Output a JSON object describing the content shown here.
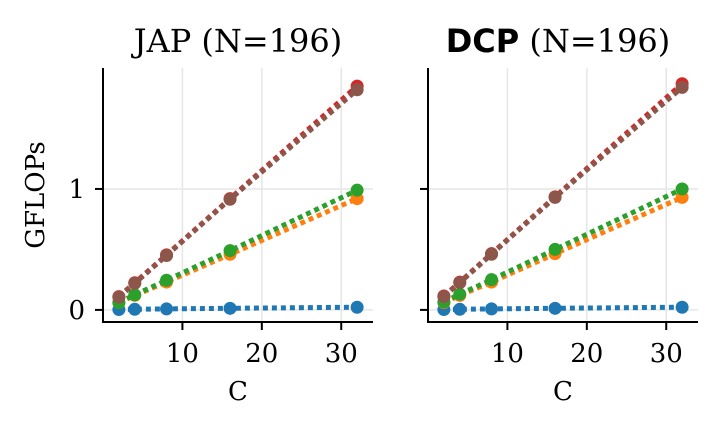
{
  "chart_data": [
    {
      "type": "line",
      "title": "JAP (N=196)",
      "title_bold_part": "",
      "title_rest": "JAP (N=196)",
      "xlabel": "C",
      "ylabel": "GFLOPs",
      "xlim": [
        0,
        34
      ],
      "ylim": [
        -0.1,
        2.0
      ],
      "xticks": [
        10,
        20,
        30
      ],
      "yticks": [
        0,
        1
      ],
      "grid": true,
      "x": [
        2,
        4,
        8,
        16,
        32
      ],
      "series": [
        {
          "name": "series-blue",
          "color": "#1f77b4",
          "values": [
            0.003,
            0.005,
            0.008,
            0.013,
            0.022
          ]
        },
        {
          "name": "series-orange",
          "color": "#ff7f0e",
          "values": [
            0.06,
            0.12,
            0.23,
            0.46,
            0.92
          ]
        },
        {
          "name": "series-green",
          "color": "#2ca02c",
          "values": [
            0.06,
            0.125,
            0.245,
            0.49,
            0.99
          ]
        },
        {
          "name": "series-red",
          "color": "#d62728",
          "values": [
            0.11,
            0.225,
            0.455,
            0.92,
            1.85
          ]
        },
        {
          "name": "series-brown",
          "color": "#8c564b",
          "values": [
            0.105,
            0.22,
            0.45,
            0.915,
            1.82
          ]
        }
      ]
    },
    {
      "type": "line",
      "title": "DCP (N=196)",
      "title_bold_part": "DCP",
      "title_rest": "(N=196)",
      "xlabel": "C",
      "ylabel": "",
      "xlim": [
        0,
        34
      ],
      "ylim": [
        -0.1,
        2.0
      ],
      "xticks": [
        10,
        20,
        30
      ],
      "yticks": [
        0,
        1
      ],
      "grid": true,
      "x": [
        2,
        4,
        8,
        16,
        32
      ],
      "series": [
        {
          "name": "series-blue",
          "color": "#1f77b4",
          "values": [
            0.003,
            0.005,
            0.008,
            0.013,
            0.022
          ]
        },
        {
          "name": "series-orange",
          "color": "#ff7f0e",
          "values": [
            0.06,
            0.12,
            0.23,
            0.465,
            0.93
          ]
        },
        {
          "name": "series-green",
          "color": "#2ca02c",
          "values": [
            0.065,
            0.13,
            0.25,
            0.5,
            1.0
          ]
        },
        {
          "name": "series-red",
          "color": "#d62728",
          "values": [
            0.115,
            0.23,
            0.465,
            0.935,
            1.87
          ]
        },
        {
          "name": "series-brown",
          "color": "#8c564b",
          "values": [
            0.11,
            0.225,
            0.46,
            0.93,
            1.84
          ]
        }
      ]
    }
  ]
}
